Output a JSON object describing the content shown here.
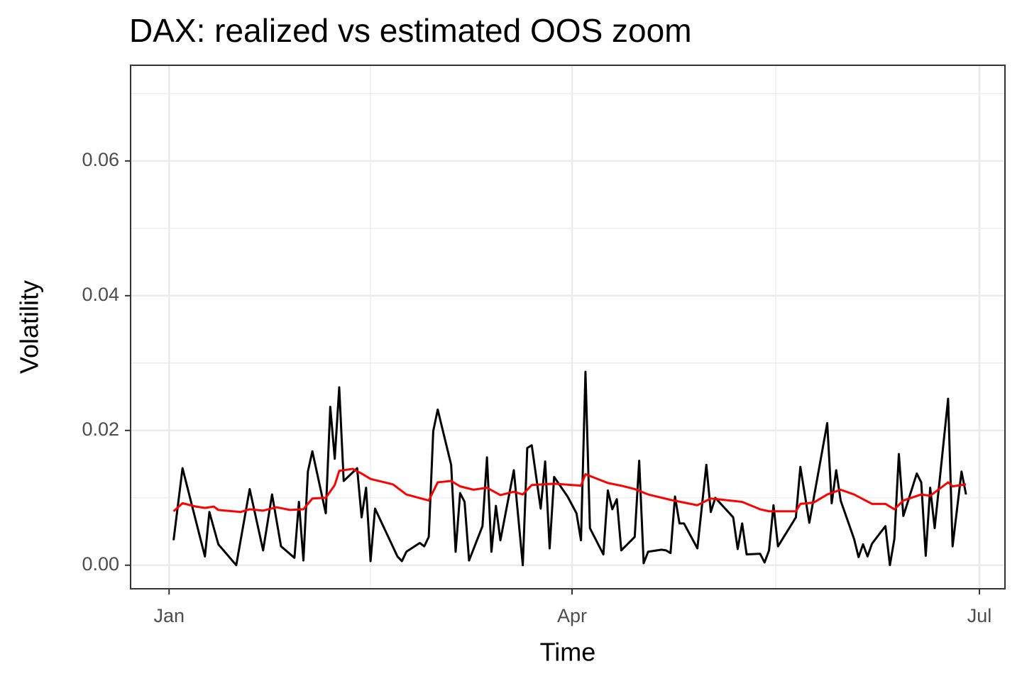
{
  "chart_data": {
    "type": "line",
    "title": "DAX: realized vs estimated OOS zoom",
    "x_label": "Time",
    "y_label": "Volatility",
    "xlim": [
      -8.6,
      186.7
    ],
    "xticks": [
      {
        "value": 0,
        "label": "Jan"
      },
      {
        "value": 90,
        "label": "Apr"
      },
      {
        "value": 181,
        "label": "Jul"
      }
    ],
    "ylim": [
      -0.0035,
      0.0742
    ],
    "yticks": [
      {
        "value": 0,
        "label": "0.00"
      },
      {
        "value": 0.02,
        "label": "0.02"
      },
      {
        "value": 0.04,
        "label": "0.04"
      },
      {
        "value": 0.06,
        "label": "0.06"
      }
    ],
    "grid": true,
    "series": [
      {
        "color": "#000000",
        "x": [
          1,
          3,
          8,
          9,
          11,
          15,
          18,
          21,
          23,
          25,
          28,
          29,
          30,
          31,
          32,
          35,
          36,
          37,
          38,
          39,
          42,
          43,
          44,
          45,
          46,
          51,
          52,
          53,
          56,
          57,
          58,
          59,
          60,
          63,
          64,
          65,
          66,
          67,
          70,
          71,
          72,
          73,
          74,
          77,
          79,
          80,
          81,
          83,
          84,
          85,
          86,
          89,
          91,
          92,
          93,
          94,
          97,
          98,
          99,
          100,
          101,
          104,
          105,
          106,
          107,
          110,
          111,
          112,
          113,
          114,
          115,
          118,
          120,
          121,
          122,
          126,
          127,
          128,
          129,
          132,
          133,
          134,
          135,
          136,
          140,
          141,
          143,
          147,
          148,
          149,
          150,
          153,
          154,
          155,
          156,
          157,
          160,
          161,
          162,
          163,
          164,
          167,
          168,
          169,
          170,
          171,
          174,
          175,
          177,
          178
        ],
        "values": [
          0.0037,
          0.0144,
          0.0013,
          0.0079,
          0.0031,
          0.0,
          0.0113,
          0.0022,
          0.0105,
          0.0028,
          0.0011,
          0.0094,
          0.0007,
          0.0139,
          0.0169,
          0.0077,
          0.0235,
          0.0158,
          0.0264,
          0.0125,
          0.0144,
          0.0071,
          0.0115,
          0.0006,
          0.0084,
          0.0013,
          0.0006,
          0.002,
          0.0033,
          0.0028,
          0.0042,
          0.0199,
          0.0231,
          0.0149,
          0.002,
          0.0107,
          0.0094,
          0.0007,
          0.0058,
          0.016,
          0.002,
          0.0088,
          0.0037,
          0.0141,
          0.0,
          0.0174,
          0.0178,
          0.0084,
          0.0154,
          0.0025,
          0.0131,
          0.0102,
          0.0077,
          0.0037,
          0.0287,
          0.0055,
          0.0016,
          0.0111,
          0.0083,
          0.0098,
          0.0022,
          0.0042,
          0.0155,
          0.0003,
          0.002,
          0.0023,
          0.0022,
          0.0018,
          0.0102,
          0.0062,
          0.0062,
          0.0025,
          0.0149,
          0.0079,
          0.01,
          0.0071,
          0.0024,
          0.0062,
          0.0016,
          0.0017,
          0.0004,
          0.0022,
          0.0089,
          0.0028,
          0.0071,
          0.0146,
          0.0063,
          0.0211,
          0.0092,
          0.0141,
          0.0096,
          0.0039,
          0.0012,
          0.0031,
          0.0013,
          0.0032,
          0.0058,
          0.0,
          0.0039,
          0.0165,
          0.0073,
          0.0136,
          0.0123,
          0.0014,
          0.0115,
          0.0055,
          0.0247,
          0.0028,
          0.0139,
          0.0105
        ]
      },
      {
        "color": "#ff0000",
        "x": [
          1,
          3,
          6,
          8,
          10,
          11,
          16,
          18,
          21,
          24,
          27,
          30,
          32,
          35,
          37,
          38,
          41,
          43,
          45,
          50,
          53,
          58,
          60,
          63,
          65,
          68,
          71,
          74,
          77,
          79,
          81,
          86,
          92,
          93,
          98,
          101,
          104,
          107,
          112,
          118,
          121,
          128,
          132,
          134,
          140,
          141,
          144,
          147,
          150,
          153,
          157,
          160,
          162,
          164,
          168,
          170,
          174,
          175,
          178
        ],
        "values": [
          0.008,
          0.0092,
          0.0087,
          0.0085,
          0.0087,
          0.0082,
          0.0079,
          0.0083,
          0.0081,
          0.0086,
          0.0082,
          0.0083,
          0.0099,
          0.01,
          0.0119,
          0.014,
          0.0143,
          0.0136,
          0.0128,
          0.012,
          0.0105,
          0.0096,
          0.0123,
          0.0125,
          0.0117,
          0.0112,
          0.0115,
          0.0104,
          0.0109,
          0.0105,
          0.0119,
          0.0121,
          0.0118,
          0.0135,
          0.0122,
          0.0118,
          0.0113,
          0.0105,
          0.0097,
          0.0089,
          0.0099,
          0.0094,
          0.0083,
          0.008,
          0.008,
          0.0091,
          0.0093,
          0.0105,
          0.0112,
          0.0105,
          0.0091,
          0.0091,
          0.0083,
          0.0096,
          0.0105,
          0.0103,
          0.0123,
          0.0117,
          0.012
        ]
      }
    ]
  }
}
